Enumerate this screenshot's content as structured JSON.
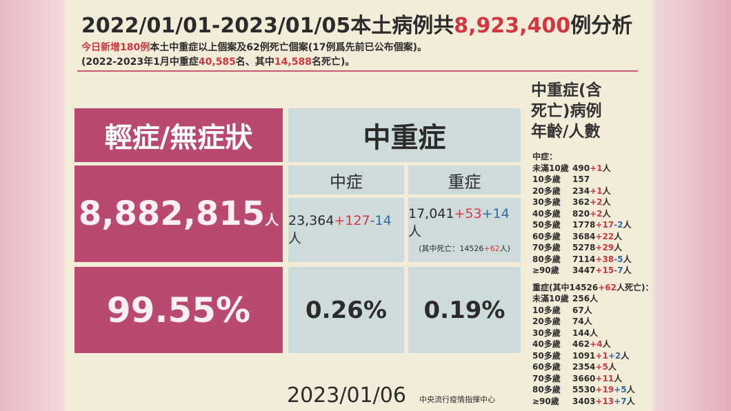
{
  "title": {
    "parts": [
      {
        "text": "2022/01/01-2023/01/05本土病例共"
      },
      {
        "text": "8,923,400",
        "tone": "red"
      },
      {
        "text": "例分析"
      }
    ]
  },
  "subtitle": {
    "line1": [
      {
        "text": "今日新增180例",
        "tone": "red"
      },
      {
        "text": "本土中重症以上個案及62例死亡個案(17例爲先前已公布個案)。"
      }
    ],
    "line2": [
      {
        "text": "(2022-2023年1月中重症"
      },
      {
        "text": "40,585",
        "tone": "red"
      },
      {
        "text": "名、其中"
      },
      {
        "text": "14,588",
        "tone": "red"
      },
      {
        "text": "名死亡)。"
      }
    ]
  },
  "table": {
    "mild_header": "輕症/無症狀",
    "severe_header": "中重症",
    "moderate_sub": "中症",
    "severe_sub": "重症",
    "mild_count": [
      {
        "text": "8,882,815"
      },
      {
        "text": "人",
        "tone": "small"
      }
    ],
    "moderate_count": [
      {
        "text": "23,364"
      },
      {
        "text": "+127",
        "tone": "red"
      },
      {
        "text": "-14",
        "tone": "blue"
      },
      {
        "text": "人"
      }
    ],
    "severe_count": [
      {
        "text": "17,041"
      },
      {
        "text": "+53",
        "tone": "red"
      },
      {
        "text": "+14",
        "tone": "blue"
      },
      {
        "text": "人"
      }
    ],
    "severe_note": [
      {
        "text": "(其中死亡：14526"
      },
      {
        "text": "+62",
        "tone": "red"
      },
      {
        "text": "人)"
      }
    ],
    "mild_pct": "99.55%",
    "moderate_pct": "0.26%",
    "severe_pct": "0.19%"
  },
  "side": {
    "heading": [
      "中重症(含",
      "死亡)病例",
      "年齡/人數"
    ],
    "moderate_label": "中症：",
    "moderate_rows": [
      {
        "age": "未滿10歲",
        "parts": [
          {
            "text": "490"
          },
          {
            "text": "+1",
            "tone": "red"
          },
          {
            "text": "人"
          }
        ]
      },
      {
        "age": "10多歲",
        "parts": [
          {
            "text": "157"
          }
        ]
      },
      {
        "age": "20多歲",
        "parts": [
          {
            "text": "234"
          },
          {
            "text": "+1",
            "tone": "red"
          },
          {
            "text": "人"
          }
        ]
      },
      {
        "age": "30多歲",
        "parts": [
          {
            "text": "362"
          },
          {
            "text": "+2",
            "tone": "red"
          },
          {
            "text": "人"
          }
        ]
      },
      {
        "age": "40多歲",
        "parts": [
          {
            "text": "820"
          },
          {
            "text": "+2",
            "tone": "red"
          },
          {
            "text": "人"
          }
        ]
      },
      {
        "age": "50多歲",
        "parts": [
          {
            "text": "1778"
          },
          {
            "text": "+17",
            "tone": "red"
          },
          {
            "text": "-2",
            "tone": "blue"
          },
          {
            "text": "人"
          }
        ]
      },
      {
        "age": "60多歲",
        "parts": [
          {
            "text": "3684"
          },
          {
            "text": "+22",
            "tone": "red"
          },
          {
            "text": "人"
          }
        ]
      },
      {
        "age": "70多歲",
        "parts": [
          {
            "text": "5278"
          },
          {
            "text": "+29",
            "tone": "red"
          },
          {
            "text": "人"
          }
        ]
      },
      {
        "age": "80多歲",
        "parts": [
          {
            "text": "7114"
          },
          {
            "text": "+38",
            "tone": "red"
          },
          {
            "text": "-5",
            "tone": "blue"
          },
          {
            "text": "人"
          }
        ]
      },
      {
        "age": "≥90歲",
        "parts": [
          {
            "text": "3447"
          },
          {
            "text": "+15",
            "tone": "red"
          },
          {
            "text": "-7",
            "tone": "blue"
          },
          {
            "text": "人"
          }
        ]
      }
    ],
    "severe_label": [
      {
        "text": "重症(其中14526"
      },
      {
        "text": "+62",
        "tone": "red"
      },
      {
        "text": "人死亡)："
      }
    ],
    "severe_rows": [
      {
        "age": "未滿10歲",
        "parts": [
          {
            "text": "256人"
          }
        ]
      },
      {
        "age": "10多歲",
        "parts": [
          {
            "text": "67人"
          }
        ]
      },
      {
        "age": "20多歲",
        "parts": [
          {
            "text": "74人"
          }
        ]
      },
      {
        "age": "30多歲",
        "parts": [
          {
            "text": "144人"
          }
        ]
      },
      {
        "age": "40多歲",
        "parts": [
          {
            "text": "462"
          },
          {
            "text": "+4",
            "tone": "red"
          },
          {
            "text": "人"
          }
        ]
      },
      {
        "age": "50多歲",
        "parts": [
          {
            "text": "1091"
          },
          {
            "text": "+1",
            "tone": "red"
          },
          {
            "text": "+2",
            "tone": "blue"
          },
          {
            "text": "人"
          }
        ]
      },
      {
        "age": "60多歲",
        "parts": [
          {
            "text": "2354"
          },
          {
            "text": "+5",
            "tone": "red"
          },
          {
            "text": "人"
          }
        ]
      },
      {
        "age": "70多歲",
        "parts": [
          {
            "text": "3660"
          },
          {
            "text": "+11",
            "tone": "red"
          },
          {
            "text": "人"
          }
        ]
      },
      {
        "age": "80多歲",
        "parts": [
          {
            "text": "5530"
          },
          {
            "text": "+19",
            "tone": "red"
          },
          {
            "text": "+5",
            "tone": "blue"
          },
          {
            "text": "人"
          }
        ]
      },
      {
        "age": "≥90歲",
        "parts": [
          {
            "text": "3403"
          },
          {
            "text": "+13",
            "tone": "red"
          },
          {
            "text": "+7",
            "tone": "blue"
          },
          {
            "text": "人"
          }
        ]
      }
    ]
  },
  "footer": {
    "date": "2023/01/06",
    "source": "中央流行疫情指揮中心"
  }
}
